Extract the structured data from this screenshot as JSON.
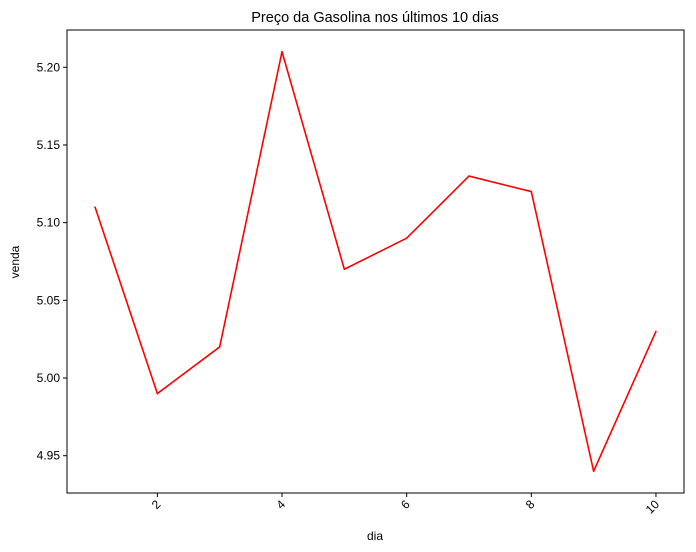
{
  "chart_data": {
    "type": "line",
    "title": "Preço da Gasolina nos últimos 10 dias",
    "xlabel": "dia",
    "ylabel": "venda",
    "x": [
      1,
      2,
      3,
      4,
      5,
      6,
      7,
      8,
      9,
      10
    ],
    "series": [
      {
        "values": [
          5.11,
          4.99,
          5.02,
          5.21,
          5.07,
          5.09,
          5.13,
          5.12,
          4.94,
          5.03
        ]
      }
    ],
    "xticks": [
      2,
      4,
      6,
      8,
      10
    ],
    "xtick_rotation": 45,
    "yticks": [
      4.95,
      5.0,
      5.05,
      5.1,
      5.15,
      5.2
    ],
    "ytick_labels": [
      "4.95",
      "5.00",
      "5.05",
      "5.10",
      "5.15",
      "5.20"
    ],
    "xlim": [
      0.55,
      10.45
    ],
    "ylim": [
      4.926,
      5.224
    ],
    "grid": false,
    "line_color": "#ff0000"
  }
}
